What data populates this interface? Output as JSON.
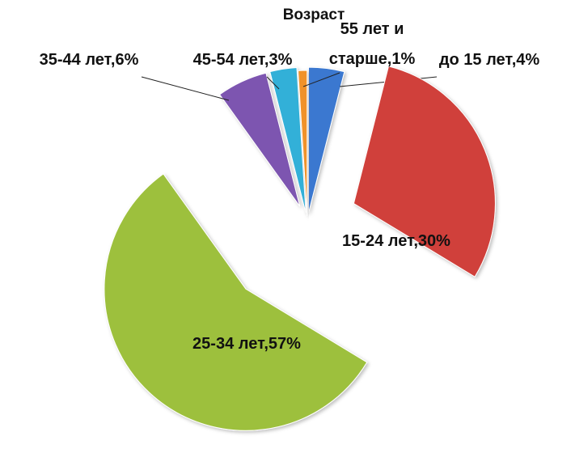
{
  "chart_data": {
    "type": "pie",
    "title": "Возраст",
    "labels": [
      "до 15 лет,4%",
      "15-24 лет,30%",
      "25-34 лет,57%",
      "35-44 лет,6%",
      "45-54 лет,3%",
      "55 лет и старше,1%"
    ],
    "values": [
      4,
      30,
      57,
      6,
      3,
      1
    ],
    "colors": [
      "#3a78d0",
      "#d0403a",
      "#9dc03c",
      "#7d55b0",
      "#30b0d8",
      "#f0922a"
    ]
  }
}
